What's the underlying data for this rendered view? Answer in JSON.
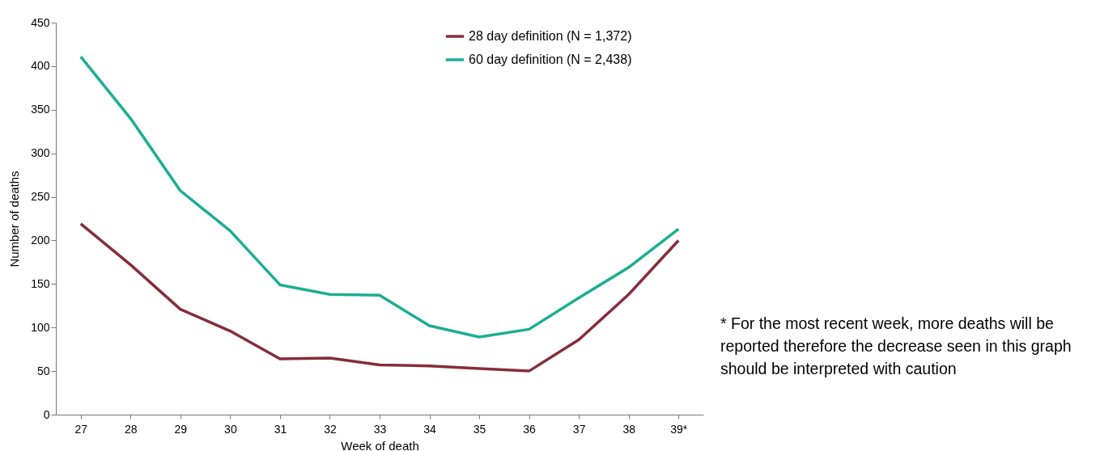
{
  "chart_data": {
    "type": "line",
    "xlabel": "Week of death",
    "ylabel": "Number of deaths",
    "categories": [
      "27",
      "28",
      "29",
      "30",
      "31",
      "32",
      "33",
      "34",
      "35",
      "36",
      "37",
      "38",
      "39*"
    ],
    "series": [
      {
        "name": "28 day definition (N = 1,372)",
        "color": "#862e3a",
        "values": [
          219,
          172,
          121,
          96,
          64,
          65,
          57,
          56,
          53,
          50,
          86,
          138,
          200
        ]
      },
      {
        "name": "60 day definition (N = 2,438)",
        "color": "#1bae94",
        "values": [
          411,
          340,
          257,
          211,
          149,
          138,
          137,
          102,
          89,
          98,
          134,
          169,
          213
        ]
      }
    ],
    "ylim": [
      0,
      450
    ],
    "yticks": [
      0,
      50,
      100,
      150,
      200,
      250,
      300,
      350,
      400,
      450
    ],
    "grid": false,
    "legend": "top right",
    "marker": "none",
    "line_style": "solid",
    "annotations": [
      "* For the most recent week, more deaths will be reported therefore the decrease seen in this graph should be interpreted with caution"
    ]
  }
}
